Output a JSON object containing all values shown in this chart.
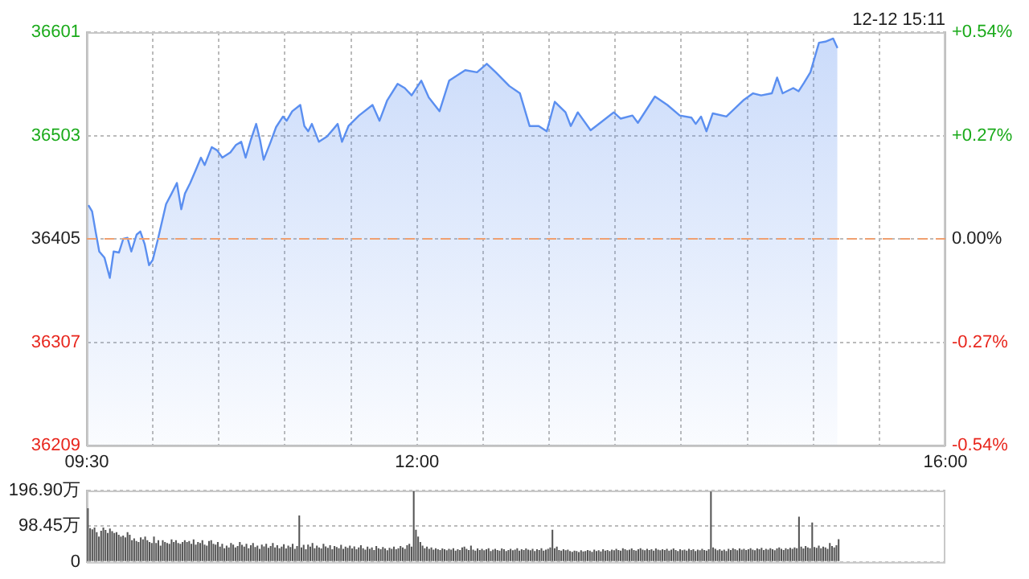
{
  "chart_data": [
    {
      "type": "area",
      "annotations": [
        "12-12 15:11"
      ],
      "marker": "none",
      "grid": true,
      "xlim": [
        9.5,
        16
      ],
      "xticks": [
        {
          "value": 9.5,
          "label": "09:30"
        },
        {
          "value": 10,
          "label": null
        },
        {
          "value": 10.5,
          "label": null
        },
        {
          "value": 11,
          "label": null
        },
        {
          "value": 11.5,
          "label": null
        },
        {
          "value": 12,
          "label": "12:00"
        },
        {
          "value": 12.5,
          "label": null
        },
        {
          "value": 13,
          "label": null
        },
        {
          "value": 13.5,
          "label": null
        },
        {
          "value": 14,
          "label": null
        },
        {
          "value": 14.5,
          "label": null
        },
        {
          "value": 15,
          "label": null
        },
        {
          "value": 15.5,
          "label": null
        },
        {
          "value": 16,
          "label": "16:00"
        }
      ],
      "ylim": [
        36209,
        36601
      ],
      "yticks": [
        36209,
        36307,
        36405,
        36503,
        36601
      ],
      "y2lim": [
        -0.54,
        0.54
      ],
      "y2ticks": [
        {
          "value": -0.54,
          "label": "-0.54%"
        },
        {
          "value": -0.27,
          "label": "-0.27%"
        },
        {
          "value": 0,
          "label": "0.00%"
        },
        {
          "value": 0.27,
          "label": "+0.27%"
        },
        {
          "value": 0.54,
          "label": "+0.54%"
        }
      ],
      "ref_lines": [
        {
          "axis": "y",
          "value": 36405,
          "color": "#f0a070",
          "line_style": "dashed"
        }
      ],
      "series": [
        {
          "color": "#5b8ff0",
          "x": [
            9.512,
            9.54,
            9.565,
            9.594,
            9.634,
            9.674,
            9.703,
            9.743,
            9.776,
            9.808,
            9.837,
            9.877,
            9.905,
            9.938,
            9.971,
            9.999,
            10.039,
            10.1,
            10.142,
            10.182,
            10.215,
            10.243,
            10.283,
            10.324,
            10.364,
            10.392,
            10.446,
            10.486,
            10.526,
            10.587,
            10.629,
            10.669,
            10.702,
            10.742,
            10.782,
            10.811,
            10.839,
            10.892,
            10.933,
            10.985,
            11.013,
            11.055,
            11.116,
            11.147,
            11.176,
            11.204,
            11.257,
            11.318,
            11.366,
            11.399,
            11.432,
            11.481,
            11.561,
            11.663,
            11.716,
            11.773,
            11.853,
            11.907,
            11.959,
            12.032,
            12.089,
            12.17,
            12.243,
            12.365,
            12.454,
            12.528,
            12.596,
            12.698,
            12.779,
            12.852,
            12.921,
            12.982,
            13.043,
            13.124,
            13.164,
            13.217,
            13.314,
            13.387,
            13.489,
            13.542,
            13.631,
            13.672,
            13.801,
            13.895,
            13.989,
            14.077,
            14.11,
            14.15,
            14.191,
            14.239,
            14.342,
            14.476,
            14.544,
            14.605,
            14.686,
            14.726,
            14.768,
            14.848,
            14.889,
            14.93,
            14.978,
            15.043,
            15.091,
            15.15,
            15.183
          ],
          "values": [
            36437,
            36431,
            36413,
            36393,
            36387,
            36368,
            36393,
            36392,
            36405,
            36406,
            36393,
            36409,
            36412,
            36400,
            36380,
            36385,
            36405,
            36438,
            36448,
            36458,
            36433,
            36448,
            36458,
            36470,
            36482,
            36475,
            36492,
            36489,
            36482,
            36487,
            36494,
            36497,
            36482,
            36499,
            36514,
            36499,
            36480,
            36497,
            36511,
            36521,
            36517,
            36526,
            36532,
            36512,
            36507,
            36514,
            36497,
            36502,
            36509,
            36514,
            36497,
            36512,
            36522,
            36532,
            36517,
            36536,
            36552,
            36548,
            36541,
            36555,
            36539,
            36526,
            36555,
            36565,
            36563,
            36571,
            36563,
            36550,
            36543,
            36512,
            36512,
            36507,
            36535,
            36525,
            36512,
            36525,
            36508,
            36515,
            36525,
            36519,
            36522,
            36515,
            36540,
            36532,
            36522,
            36520,
            36514,
            36521,
            36507,
            36524,
            36521,
            36537,
            36543,
            36541,
            36543,
            36558,
            36543,
            36548,
            36545,
            36553,
            36563,
            36591,
            36592,
            36595,
            36586
          ]
        }
      ]
    },
    {
      "type": "bar",
      "color": "#555555",
      "grid": "y",
      "tick_labels": "y",
      "ylim": [
        0,
        196.9
      ],
      "yticks": [
        0,
        {
          "value": 98.45,
          "label": "98.45万"
        },
        {
          "value": 196.9,
          "label": "196.90万"
        }
      ],
      "categories": [
        null,
        null,
        null,
        null,
        null,
        null,
        null,
        null,
        null,
        null,
        null,
        null,
        null,
        null,
        null,
        null,
        null,
        null,
        null,
        null,
        null,
        null,
        null,
        null,
        null,
        null,
        null,
        null,
        null,
        null,
        null,
        null,
        null,
        null,
        null,
        null,
        null,
        null,
        null,
        null,
        null,
        null,
        null,
        null,
        null,
        null,
        null,
        null,
        null,
        null,
        null,
        null,
        null,
        null,
        null,
        null,
        null,
        null,
        null,
        null,
        null,
        null,
        null,
        null,
        null,
        null,
        null,
        null,
        null,
        null,
        null,
        null,
        null,
        null,
        null,
        null,
        null,
        null,
        null,
        null,
        null,
        null,
        null,
        null,
        null,
        null,
        null,
        null,
        null,
        null,
        null,
        null,
        null,
        null,
        null,
        null,
        null,
        null,
        null,
        null,
        null,
        null,
        null,
        null,
        null,
        null,
        null,
        null,
        null,
        null,
        null,
        null,
        null,
        null,
        null,
        null,
        null,
        null,
        null,
        null,
        null,
        null,
        null,
        null,
        null,
        null,
        null,
        null,
        null,
        null,
        null,
        null,
        null,
        null,
        null,
        null,
        null,
        null,
        null,
        null,
        null,
        null,
        null,
        null,
        null,
        null,
        null,
        null,
        null,
        null,
        null,
        null,
        null,
        null,
        null,
        null,
        null,
        null,
        null,
        null,
        null,
        null,
        null,
        null,
        null,
        null,
        null,
        null,
        null,
        null,
        null,
        null,
        null,
        null,
        null,
        null,
        null,
        null,
        null,
        null,
        null,
        null,
        null,
        null,
        null,
        null,
        null,
        null,
        null,
        null,
        null,
        null,
        null,
        null,
        null,
        null,
        null,
        null,
        null,
        null,
        null,
        null,
        null,
        null,
        null,
        null,
        null,
        null,
        null,
        null,
        null,
        null,
        null,
        null,
        null,
        null,
        null,
        null,
        null,
        null,
        null,
        null,
        null,
        null,
        null,
        null,
        null,
        null,
        null,
        null,
        null,
        null,
        null,
        null,
        null,
        null,
        null,
        null,
        null,
        null,
        null,
        null,
        null,
        null,
        null,
        null,
        null,
        null,
        null,
        null,
        null,
        null,
        null,
        null,
        null,
        null,
        null,
        null,
        null,
        null,
        null,
        null,
        null,
        null,
        null,
        null,
        null,
        null,
        null,
        null,
        null,
        null,
        null,
        null,
        null,
        null,
        null,
        null,
        null,
        null,
        null,
        null,
        null,
        null,
        null,
        null,
        null,
        null,
        null,
        null,
        null,
        null,
        null,
        null,
        null,
        null,
        null,
        null,
        null,
        null,
        null,
        null,
        null,
        null,
        null,
        null,
        null,
        null,
        null,
        null,
        null,
        null,
        null,
        null,
        null,
        null,
        null,
        null,
        null,
        null,
        null,
        null,
        null,
        null,
        null,
        null,
        null,
        null,
        null,
        null,
        null,
        null,
        null,
        null,
        null,
        null,
        null,
        null,
        null,
        null,
        null,
        null,
        null,
        null,
        null,
        null,
        null,
        null,
        null,
        null,
        null,
        null,
        null,
        null,
        null,
        null,
        null,
        null,
        null,
        null,
        null,
        null,
        null,
        null,
        null,
        null,
        null,
        null,
        null,
        null,
        null,
        null,
        null,
        null,
        null,
        null,
        null,
        null,
        null,
        null,
        null,
        null,
        null,
        null,
        null,
        null,
        null,
        null,
        null,
        null
      ],
      "values": [
        148,
        93,
        90,
        95,
        82,
        70,
        86,
        95,
        88,
        80,
        92,
        85,
        80,
        82,
        75,
        70,
        73,
        68,
        82,
        75,
        60,
        65,
        58,
        55,
        68,
        62,
        70,
        60,
        55,
        52,
        70,
        52,
        60,
        45,
        60,
        55,
        52,
        50,
        62,
        55,
        60,
        52,
        50,
        55,
        60,
        55,
        58,
        50,
        62,
        48,
        55,
        52,
        60,
        48,
        45,
        58,
        60,
        50,
        48,
        55,
        42,
        50,
        38,
        45,
        40,
        52,
        48,
        40,
        44,
        55,
        47,
        42,
        50,
        38,
        46,
        52,
        41,
        45,
        36,
        48,
        43,
        50,
        39,
        44,
        52,
        40,
        46,
        38,
        42,
        49,
        37,
        45,
        41,
        50,
        36,
        44,
        128,
        40,
        47,
        35,
        48,
        42,
        52,
        38,
        45,
        40,
        37,
        50,
        43,
        39,
        46,
        35,
        44,
        41,
        38,
        47,
        36,
        42,
        39,
        45,
        37,
        43,
        35,
        40,
        46,
        38,
        34,
        42,
        36,
        40,
        33,
        44,
        38,
        35,
        41,
        37,
        32,
        39,
        36,
        42,
        35,
        38,
        44,
        40,
        36,
        46,
        50,
        42,
        195,
        89,
        70,
        55,
        45,
        38,
        42,
        36,
        40,
        34,
        38,
        35,
        33,
        37,
        35,
        32,
        36,
        34,
        38,
        31,
        35,
        33,
        40,
        42,
        36,
        33,
        45,
        34,
        31,
        37,
        33,
        36,
        32,
        35,
        38,
        30,
        34,
        36,
        33,
        31,
        37,
        35,
        30,
        33,
        36,
        32,
        34,
        38,
        31,
        35,
        33,
        37,
        34,
        32,
        36,
        30,
        35,
        33,
        38,
        31,
        34,
        36,
        40,
        89,
        38,
        42,
        33,
        31,
        35,
        32,
        34,
        30,
        28,
        31,
        30,
        27,
        32,
        29,
        30,
        33,
        31,
        28,
        34,
        30,
        32,
        29,
        35,
        31,
        33,
        30,
        34,
        32,
        36,
        33,
        31,
        38,
        35,
        32,
        34,
        37,
        33,
        31,
        35,
        38,
        34,
        32,
        36,
        33,
        35,
        31,
        37,
        34,
        32,
        35,
        33,
        36,
        31,
        34,
        37,
        33,
        30,
        35,
        32,
        34,
        31,
        36,
        33,
        35,
        30,
        34,
        32,
        36,
        33,
        31,
        35,
        194,
        40,
        36,
        32,
        35,
        31,
        34,
        30,
        36,
        33,
        38,
        35,
        32,
        37,
        34,
        36,
        33,
        35,
        38,
        34,
        32,
        37,
        35,
        39,
        33,
        36,
        34,
        38,
        35,
        32,
        37,
        40,
        36,
        33,
        38,
        35,
        39,
        36,
        40,
        38,
        125,
        42,
        37,
        44,
        40,
        38,
        109,
        41,
        39,
        45,
        38,
        42,
        40,
        36,
        52,
        44,
        40,
        46,
        63,
        null,
        null,
        null,
        null,
        null,
        null,
        null,
        null,
        null,
        null,
        null,
        null,
        null,
        null,
        null,
        null,
        null,
        null,
        null,
        null,
        null,
        null,
        null,
        null,
        null,
        null,
        null,
        null,
        null,
        null,
        null,
        null,
        null,
        null,
        null,
        null,
        null,
        null,
        null,
        null,
        null,
        null,
        null,
        null,
        null,
        null,
        null,
        null
      ]
    }
  ]
}
